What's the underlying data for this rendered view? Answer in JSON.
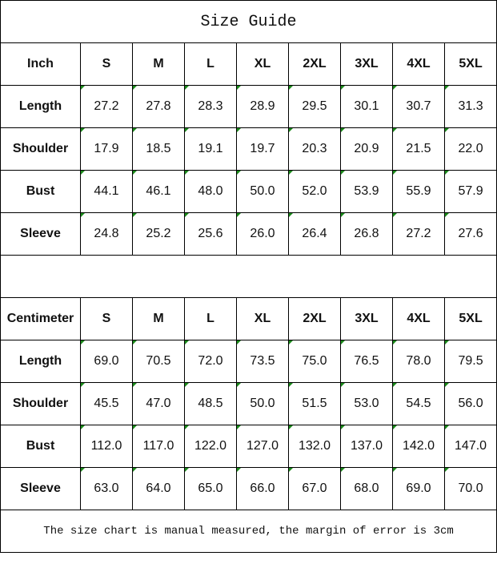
{
  "title": "Size Guide",
  "sizes": [
    "S",
    "M",
    "L",
    "XL",
    "2XL",
    "3XL",
    "4XL",
    "5XL"
  ],
  "inch": {
    "label": "Inch",
    "rows": [
      {
        "name": "Length",
        "values": [
          "27.2",
          "27.8",
          "28.3",
          "28.9",
          "29.5",
          "30.1",
          "30.7",
          "31.3"
        ]
      },
      {
        "name": "Shoulder",
        "values": [
          "17.9",
          "18.5",
          "19.1",
          "19.7",
          "20.3",
          "20.9",
          "21.5",
          "22.0"
        ]
      },
      {
        "name": "Bust",
        "values": [
          "44.1",
          "46.1",
          "48.0",
          "50.0",
          "52.0",
          "53.9",
          "55.9",
          "57.9"
        ]
      },
      {
        "name": "Sleeve",
        "values": [
          "24.8",
          "25.2",
          "25.6",
          "26.0",
          "26.4",
          "26.8",
          "27.2",
          "27.6"
        ]
      }
    ]
  },
  "centimeter": {
    "label": "Centimeter",
    "rows": [
      {
        "name": "Length",
        "values": [
          "69.0",
          "70.5",
          "72.0",
          "73.5",
          "75.0",
          "76.5",
          "78.0",
          "79.5"
        ]
      },
      {
        "name": "Shoulder",
        "values": [
          "45.5",
          "47.0",
          "48.5",
          "50.0",
          "51.5",
          "53.0",
          "54.5",
          "56.0"
        ]
      },
      {
        "name": "Bust",
        "values": [
          "112.0",
          "117.0",
          "122.0",
          "127.0",
          "132.0",
          "137.0",
          "142.0",
          "147.0"
        ]
      },
      {
        "name": "Sleeve",
        "values": [
          "63.0",
          "64.0",
          "65.0",
          "66.0",
          "67.0",
          "68.0",
          "69.0",
          "70.0"
        ]
      }
    ]
  },
  "note": "The size chart is manual measured, the margin of error is 3cm",
  "colors": {
    "cell_marker": "#1a8a1a",
    "border": "#000000"
  }
}
